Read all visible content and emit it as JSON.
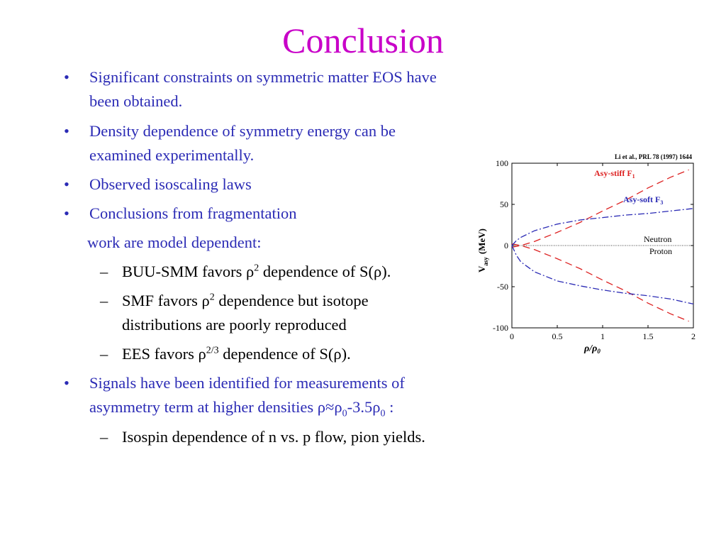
{
  "slide": {
    "title": "Conclusion",
    "bullets": [
      {
        "lines": [
          "Significant constraints on symmetric matter EOS have",
          "been obtained."
        ]
      },
      {
        "lines": [
          "Density dependence of symmetry energy can be",
          "examined experimentally."
        ]
      },
      {
        "lines": [
          "Observed isoscaling laws"
        ]
      },
      {
        "lines": [
          "Conclusions from fragmentation"
        ]
      }
    ],
    "continuation": "work are model dependent:",
    "sub1": {
      "a": "BUU-SMM favors ρ",
      "sup": "2",
      "b": " dependence of S(ρ)."
    },
    "sub2": {
      "a": "SMF favors ρ",
      "sup": "2",
      "b": " dependence but isotope",
      "line2": "distributions are poorly reproduced"
    },
    "sub3": {
      "a": "EES favors ρ",
      "sup": "2/3",
      "b": " dependence of S(ρ)."
    },
    "bullet5": {
      "line1": "Signals have been identified for measurements of",
      "a": "asymmetry term at higher densities ρ≈ρ",
      "sub0": "0",
      "b": "-3.5ρ",
      "sub1": "0",
      "c": " :"
    },
    "sub4": "Isospin dependence of n vs. p flow, pion yields."
  },
  "chart_data": {
    "type": "line",
    "citation": "Li et al., PRL 78 (1997) 1644",
    "ylabel_main": "V",
    "ylabel_sub": "asy",
    "ylabel_unit": "(MeV)",
    "xlabel_a": "ρ/ρ",
    "xlabel_sub": "0",
    "xlim": [
      0,
      2
    ],
    "ylim": [
      -100,
      100
    ],
    "xticks": [
      0,
      0.5,
      1,
      1.5,
      2
    ],
    "xtick_labels": [
      "0",
      "0.5",
      "1",
      "1.5",
      "2"
    ],
    "yticks": [
      100,
      50,
      0,
      -50,
      -100
    ],
    "ytick_labels": [
      "100",
      "50",
      "0",
      "-50",
      "-100"
    ],
    "colors": {
      "stiff": "#dd2222",
      "soft": "#2b2bb5"
    },
    "series": [
      {
        "name": "Asy-stiff F",
        "sub": "1",
        "style": "dashed",
        "color": "red",
        "x": [
          0,
          0.1,
          0.25,
          0.5,
          0.75,
          1.0,
          1.25,
          1.5,
          1.75,
          1.95
        ],
        "y": [
          -2,
          0,
          5,
          16,
          28,
          42,
          55,
          70,
          83,
          92
        ]
      },
      {
        "name": "Asy-stiff F",
        "sub": "1",
        "style": "dashed",
        "color": "red",
        "branch": "proton",
        "x": [
          0,
          0.1,
          0.25,
          0.5,
          0.75,
          1.0,
          1.25,
          1.5,
          1.75,
          1.95
        ],
        "y": [
          2,
          0,
          -5,
          -16,
          -28,
          -42,
          -55,
          -70,
          -83,
          -92
        ]
      },
      {
        "name": "Asy-soft F",
        "sub": "3",
        "style": "dashdot",
        "color": "blue",
        "x": [
          0,
          0.05,
          0.1,
          0.25,
          0.5,
          0.75,
          1.0,
          1.25,
          1.5,
          1.75,
          2.0
        ],
        "y": [
          0,
          6,
          10,
          18,
          26,
          31,
          34,
          37,
          39,
          42,
          45
        ]
      },
      {
        "name": "Asy-soft F",
        "sub": "3",
        "style": "dashdot",
        "color": "blue",
        "branch": "proton",
        "x": [
          0,
          0.05,
          0.1,
          0.25,
          0.5,
          0.75,
          1.0,
          1.25,
          1.5,
          1.75,
          2.0
        ],
        "y": [
          0,
          -12,
          -20,
          -32,
          -43,
          -49,
          -54,
          -58,
          -61,
          -65,
          -71
        ]
      }
    ],
    "annotations": {
      "stiff": "Asy-stiff F",
      "stiff_sub": "1",
      "soft": "Asy-soft F",
      "soft_sub": "3",
      "neutron": "Neutron",
      "proton": "Proton"
    }
  }
}
